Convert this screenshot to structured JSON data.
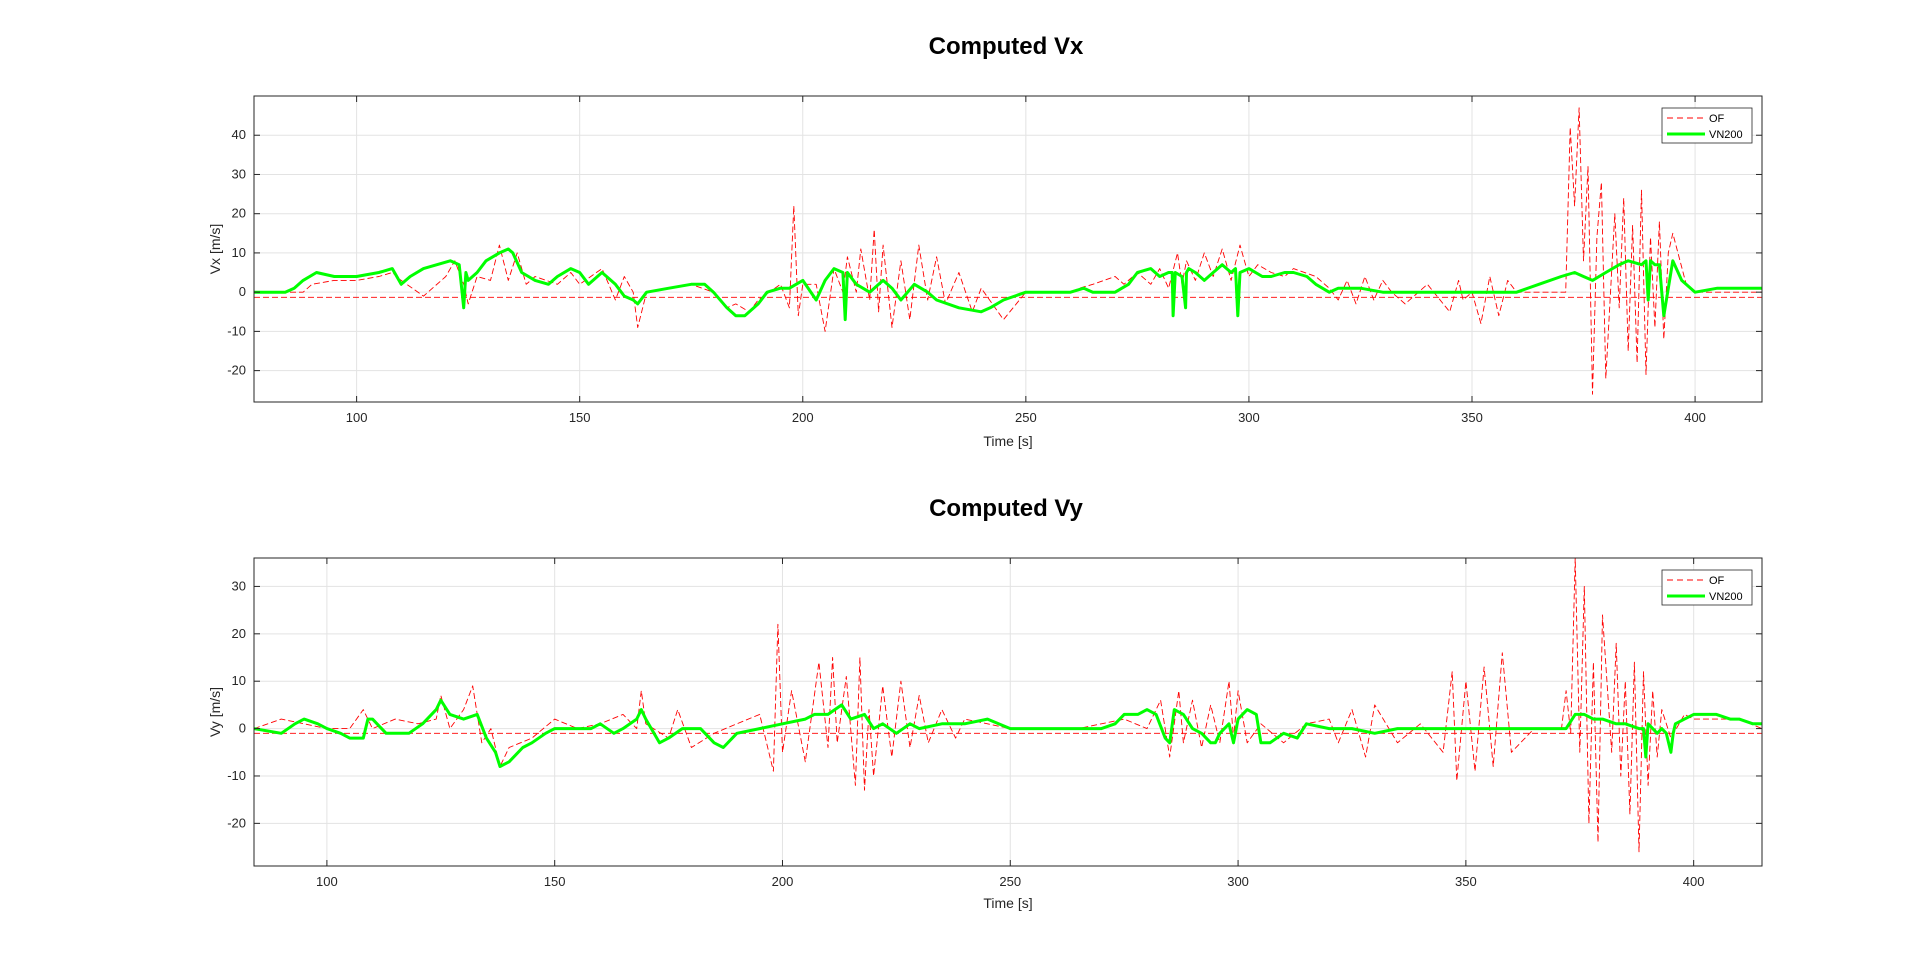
{
  "chart_data": [
    {
      "type": "line",
      "title": "Computed Vx",
      "xlabel": "Time [s]",
      "ylabel": "Vx [m/s]",
      "xlim": [
        77,
        415
      ],
      "ylim": [
        -28,
        50
      ],
      "xticks": [
        100,
        150,
        200,
        250,
        300,
        350,
        400
      ],
      "yticks": [
        -20,
        -10,
        0,
        10,
        20,
        30,
        40
      ],
      "grid": true,
      "legend": "top-right",
      "series": [
        {
          "name": "OF",
          "style": "dashed",
          "color": "#ff0000",
          "x": [
            77,
            88,
            90,
            95,
            100,
            105,
            108,
            110,
            115,
            120,
            122,
            124,
            125,
            127,
            130,
            132,
            134,
            136,
            138,
            140,
            145,
            148,
            150,
            155,
            158,
            160,
            162,
            163,
            165,
            170,
            175,
            180,
            183,
            185,
            188,
            190,
            195,
            197,
            198,
            199,
            200,
            203,
            205,
            207,
            209,
            210,
            212,
            213,
            215,
            216,
            217,
            218,
            220,
            222,
            224,
            226,
            228,
            230,
            232,
            235,
            238,
            240,
            245,
            250,
            255,
            260,
            262,
            265,
            270,
            272,
            275,
            278,
            280,
            282,
            284,
            285,
            286,
            288,
            290,
            292,
            294,
            296,
            298,
            300,
            302,
            305,
            308,
            310,
            315,
            318,
            320,
            322,
            324,
            326,
            328,
            330,
            332,
            335,
            340,
            345,
            347,
            348,
            350,
            352,
            354,
            356,
            358,
            360,
            365,
            371,
            372,
            373,
            374,
            375,
            376,
            377,
            378,
            379,
            380,
            382,
            383,
            384,
            385,
            386,
            387,
            388,
            389,
            390,
            391,
            392,
            393,
            394,
            395,
            398,
            400,
            405,
            410,
            415
          ],
          "y": [
            0,
            0,
            2,
            3,
            3,
            4,
            5,
            3,
            -1,
            4,
            8,
            2,
            -3,
            4,
            3,
            12,
            3,
            10,
            2,
            4,
            2,
            5,
            2,
            6,
            -2,
            4,
            0,
            -9,
            0,
            1,
            2,
            0,
            -4,
            -3,
            -5,
            -2,
            2,
            -4,
            22,
            -6,
            2,
            2,
            -10,
            6,
            0,
            9,
            0,
            11,
            -2,
            16,
            -5,
            12,
            -9,
            8,
            -7,
            12,
            -2,
            9,
            -3,
            5,
            -5,
            1,
            -7,
            0,
            0,
            0,
            1,
            2,
            4,
            2,
            5,
            2,
            6,
            1,
            10,
            2,
            8,
            3,
            10,
            4,
            11,
            3,
            12,
            4,
            7,
            5,
            4,
            6,
            4,
            1,
            -2,
            3,
            -3,
            4,
            -2,
            3,
            0,
            -3,
            2,
            -5,
            3,
            -2,
            0,
            -8,
            4,
            -6,
            3,
            0,
            0,
            0,
            42,
            22,
            47,
            8,
            32,
            -26,
            14,
            28,
            -22,
            20,
            -4,
            24,
            -15,
            17,
            -18,
            26,
            -21,
            14,
            -9,
            18,
            -12,
            10,
            15,
            2,
            0,
            0,
            0,
            0
          ]
        },
        {
          "name": "",
          "style": "dashed",
          "color": "#ff0000",
          "x": [
            77,
            415
          ],
          "y": [
            -1.3,
            -1.3
          ]
        },
        {
          "name": "VN200",
          "style": "solid",
          "color": "#00ff00",
          "x": [
            77,
            84,
            86,
            88,
            91,
            95,
            100,
            105,
            108,
            110,
            112,
            115,
            118,
            121,
            123,
            124,
            124.5,
            125,
            127,
            129,
            132,
            134,
            135,
            137,
            140,
            143,
            145,
            148,
            150,
            152,
            155,
            158,
            160,
            162,
            163,
            165,
            170,
            175,
            178,
            180,
            183,
            185,
            187,
            190,
            192,
            195,
            197,
            200,
            203,
            205,
            207,
            209,
            209.5,
            210,
            212,
            215,
            218,
            220,
            222,
            225,
            228,
            230,
            235,
            240,
            242,
            245,
            250,
            255,
            260,
            263,
            265,
            270,
            273,
            275,
            278,
            280,
            282,
            282.8,
            283,
            283.5,
            285,
            285.8,
            286,
            286.5,
            288,
            290,
            292,
            294,
            296,
            297,
            297.5,
            298,
            300,
            303,
            305,
            308,
            310,
            313,
            315,
            318,
            320,
            325,
            330,
            335,
            340,
            345,
            350,
            355,
            360,
            365,
            370,
            373,
            375,
            377,
            380,
            383,
            385,
            388,
            389,
            389.5,
            390,
            391,
            392,
            393,
            395,
            397,
            400,
            405,
            410,
            415
          ],
          "y": [
            0,
            0,
            1,
            3,
            5,
            4,
            4,
            5,
            6,
            2,
            4,
            6,
            7,
            8,
            7,
            -4,
            5,
            3,
            5,
            8,
            10,
            11,
            10,
            5,
            3,
            2,
            4,
            6,
            5,
            2,
            5,
            2,
            -1,
            -2,
            -3,
            0,
            1,
            2,
            2,
            0,
            -4,
            -6,
            -6,
            -3,
            0,
            1,
            1,
            3,
            -2,
            3,
            6,
            5,
            -7,
            5,
            2,
            0,
            3,
            1,
            -2,
            2,
            0,
            -2,
            -4,
            -5,
            -4,
            -2,
            0,
            0,
            0,
            1,
            0,
            0,
            2,
            5,
            6,
            4,
            5,
            5,
            -6,
            5,
            4,
            -4,
            5,
            6,
            5,
            3,
            5,
            7,
            5,
            6,
            -6,
            5,
            6,
            4,
            4,
            5,
            5,
            4,
            2,
            0,
            1,
            1,
            0,
            0,
            0,
            0,
            0,
            0,
            0,
            2,
            4,
            5,
            4,
            3,
            5,
            7,
            8,
            7,
            8,
            -2,
            8,
            7,
            7,
            -6,
            8,
            3,
            0,
            1,
            1,
            1
          ]
        }
      ]
    },
    {
      "type": "line",
      "title": "Computed Vy",
      "xlabel": "Time [s]",
      "ylabel": "Vy [m/s]",
      "xlim": [
        84,
        415
      ],
      "ylim": [
        -29,
        36
      ],
      "xticks": [
        100,
        150,
        200,
        250,
        300,
        350,
        400
      ],
      "yticks": [
        -20,
        -10,
        0,
        10,
        20,
        30
      ],
      "grid": true,
      "legend": "top-right",
      "series": [
        {
          "name": "OF",
          "style": "dashed",
          "color": "#ff0000",
          "x": [
            84,
            90,
            95,
            100,
            105,
            108,
            110,
            115,
            120,
            124,
            125,
            127,
            130,
            132,
            134,
            136,
            138,
            140,
            145,
            150,
            155,
            160,
            165,
            168,
            169,
            170,
            175,
            177,
            180,
            185,
            190,
            195,
            198,
            199,
            200,
            202,
            205,
            208,
            210,
            211,
            212,
            214,
            216,
            217,
            218,
            219,
            220,
            222,
            224,
            226,
            228,
            230,
            232,
            235,
            238,
            240,
            245,
            250,
            255,
            260,
            265,
            270,
            275,
            280,
            283,
            285,
            287,
            288,
            290,
            292,
            294,
            296,
            298,
            299,
            300,
            302,
            305,
            310,
            315,
            320,
            322,
            325,
            328,
            330,
            335,
            340,
            345,
            347,
            348,
            350,
            352,
            354,
            356,
            358,
            360,
            365,
            370,
            371,
            372,
            373,
            374,
            375,
            376,
            377,
            378,
            379,
            380,
            382,
            383,
            384,
            385,
            386,
            387,
            388,
            389,
            390,
            391,
            392,
            393,
            395,
            398,
            400,
            405,
            410,
            415
          ],
          "y": [
            0,
            2,
            1,
            0,
            0,
            4,
            0,
            2,
            1,
            2,
            7,
            0,
            4,
            9,
            -3,
            0,
            -8,
            -4,
            -2,
            2,
            0,
            1,
            3,
            0,
            8,
            1,
            -2,
            4,
            -4,
            -1,
            1,
            3,
            -9,
            22,
            -5,
            8,
            -7,
            14,
            -4,
            15,
            -3,
            11,
            -12,
            15,
            -13,
            4,
            -10,
            9,
            -6,
            10,
            -4,
            7,
            -3,
            4,
            -2,
            2,
            1,
            0,
            0,
            0,
            0,
            1,
            2,
            0,
            6,
            -6,
            8,
            -3,
            6,
            -4,
            5,
            -3,
            10,
            -2,
            8,
            -3,
            1,
            -3,
            1,
            2,
            -3,
            4,
            -6,
            5,
            -3,
            1,
            -5,
            12,
            -11,
            10,
            -9,
            13,
            -8,
            16,
            -5,
            0,
            0,
            0,
            8,
            -1,
            36,
            -5,
            30,
            -20,
            14,
            -24,
            24,
            -5,
            18,
            -10,
            10,
            -18,
            14,
            -26,
            12,
            -12,
            8,
            -6,
            4,
            -2,
            3,
            2,
            2,
            2,
            0
          ]
        },
        {
          "name": "",
          "style": "dashed",
          "color": "#ff0000",
          "x": [
            84,
            415
          ],
          "y": [
            -1,
            -1
          ]
        },
        {
          "name": "VN200",
          "style": "solid",
          "color": "#00ff00",
          "x": [
            84,
            90,
            93,
            95,
            98,
            100,
            103,
            105,
            108,
            109,
            110,
            113,
            115,
            118,
            121,
            124,
            125,
            127,
            130,
            133,
            135,
            137,
            138,
            140,
            143,
            145,
            148,
            150,
            153,
            155,
            158,
            160,
            163,
            165,
            168,
            169,
            170,
            173,
            175,
            178,
            180,
            182,
            185,
            187,
            190,
            195,
            200,
            205,
            207,
            210,
            213,
            215,
            218,
            220,
            222,
            225,
            228,
            230,
            235,
            240,
            245,
            250,
            255,
            260,
            265,
            270,
            273,
            275,
            278,
            280,
            282,
            284,
            285,
            286,
            288,
            290,
            292,
            294,
            295,
            296,
            298,
            299,
            300,
            302,
            304,
            305,
            307,
            310,
            313,
            315,
            320,
            325,
            330,
            335,
            340,
            345,
            350,
            355,
            360,
            365,
            370,
            372,
            374,
            376,
            378,
            380,
            383,
            385,
            388,
            389,
            389.5,
            390,
            391,
            392,
            393,
            394,
            395,
            395.5,
            396,
            398,
            400,
            403,
            405,
            408,
            410,
            413,
            415
          ],
          "y": [
            0,
            -1,
            1,
            2,
            1,
            0,
            -1,
            -2,
            -2,
            2,
            2,
            -1,
            -1,
            -1,
            1,
            4,
            6,
            3,
            2,
            3,
            -2,
            -5,
            -8,
            -7,
            -4,
            -3,
            -1,
            0,
            0,
            0,
            0,
            1,
            -1,
            0,
            2,
            4,
            2,
            -3,
            -2,
            0,
            0,
            0,
            -3,
            -4,
            -1,
            0,
            1,
            2,
            3,
            3,
            5,
            2,
            3,
            0,
            1,
            -1,
            1,
            0,
            1,
            1,
            2,
            0,
            0,
            0,
            0,
            0,
            1,
            3,
            3,
            4,
            3,
            -2,
            -3,
            4,
            3,
            0,
            -1,
            -3,
            -3,
            -1,
            1,
            -3,
            2,
            4,
            3,
            -3,
            -3,
            -1,
            -2,
            1,
            0,
            0,
            -1,
            0,
            0,
            0,
            0,
            0,
            0,
            0,
            0,
            0,
            3,
            3,
            2,
            2,
            1,
            1,
            0,
            0,
            -6,
            1,
            0,
            -1,
            0,
            -1,
            -5,
            -1,
            1,
            2,
            3,
            3,
            3,
            2,
            2,
            1,
            1
          ]
        }
      ]
    }
  ],
  "legend_labels": [
    "OF",
    "VN200"
  ]
}
